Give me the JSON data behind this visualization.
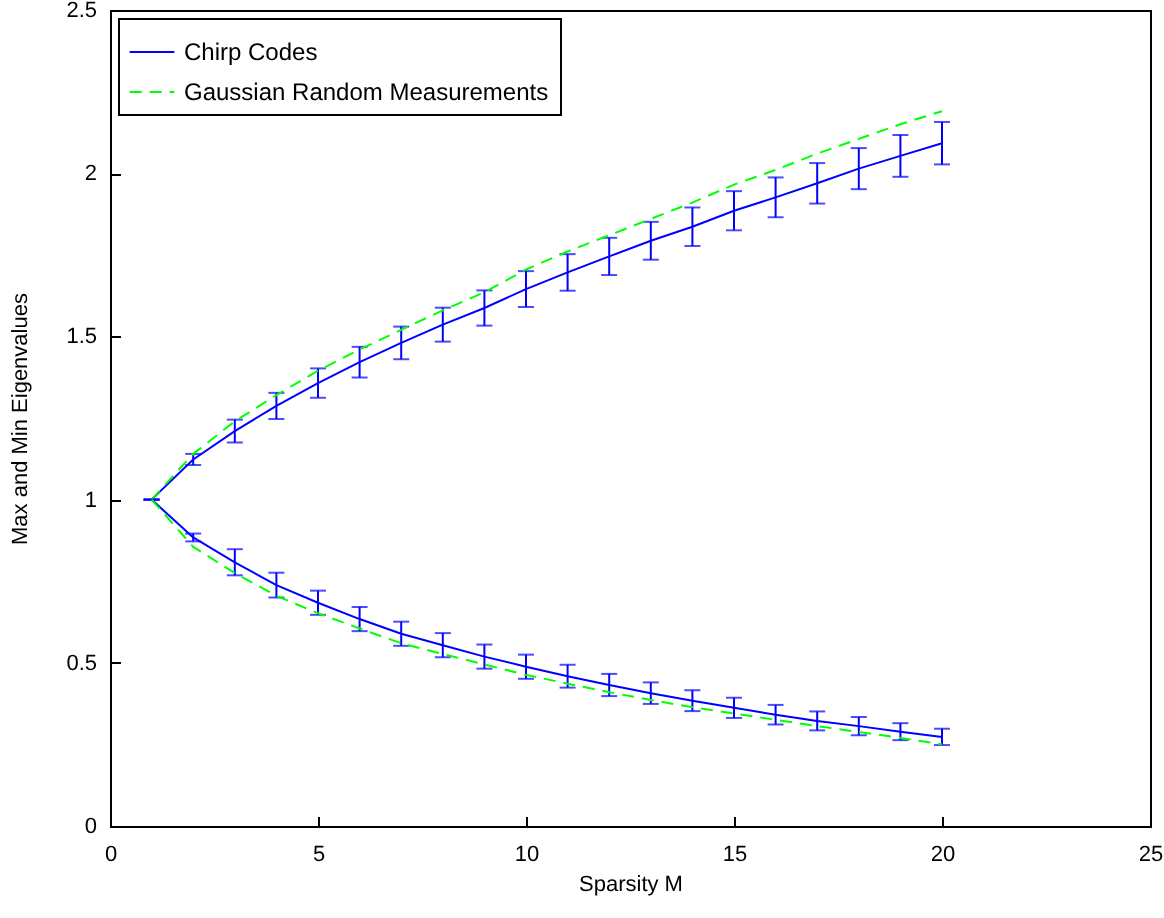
{
  "chart_data": {
    "type": "line",
    "xlabel": "Sparsity M",
    "ylabel": "Max and Min Eigenvalues",
    "x": [
      1,
      2,
      3,
      4,
      5,
      6,
      7,
      8,
      9,
      10,
      11,
      12,
      13,
      14,
      15,
      16,
      17,
      18,
      19,
      20
    ],
    "series": [
      {
        "name": "Chirp Codes",
        "color": "#0000ff",
        "line_style": "solid",
        "values": [
          1,
          1.123,
          1.21,
          1.287,
          1.357,
          1.421,
          1.48,
          1.536,
          1.587,
          1.645,
          1.696,
          1.745,
          1.793,
          1.836,
          1.885,
          1.926,
          1.969,
          2.014,
          2.053,
          2.092
        ],
        "errors": [
          0,
          0.017,
          0.035,
          0.04,
          0.045,
          0.047,
          0.05,
          0.052,
          0.054,
          0.055,
          0.056,
          0.057,
          0.058,
          0.059,
          0.06,
          0.061,
          0.062,
          0.063,
          0.064,
          0.065
        ]
      },
      {
        "name": "Gaussian Random Measurements",
        "color": "#00ff00",
        "line_style": "dashed",
        "values": [
          1,
          1.14,
          1.24,
          1.32,
          1.395,
          1.46,
          1.52,
          1.58,
          1.635,
          1.705,
          1.76,
          1.81,
          1.86,
          1.91,
          1.965,
          2.01,
          2.06,
          2.105,
          2.15,
          2.19
        ]
      },
      {
        "color": "#0000ff",
        "line_style": "solid",
        "values": [
          1,
          0.884,
          0.808,
          0.738,
          0.684,
          0.634,
          0.589,
          0.554,
          0.519,
          0.488,
          0.459,
          0.432,
          0.407,
          0.384,
          0.362,
          0.341,
          0.322,
          0.306,
          0.289,
          0.273
        ],
        "errors": [
          0,
          0.012,
          0.04,
          0.038,
          0.037,
          0.037,
          0.037,
          0.037,
          0.037,
          0.037,
          0.035,
          0.034,
          0.033,
          0.032,
          0.031,
          0.03,
          0.029,
          0.028,
          0.026,
          0.025
        ]
      },
      {
        "color": "#00ff00",
        "line_style": "dashed",
        "values": [
          1,
          0.855,
          0.775,
          0.705,
          0.652,
          0.605,
          0.56,
          0.527,
          0.495,
          0.463,
          0.436,
          0.41,
          0.386,
          0.364,
          0.345,
          0.325,
          0.306,
          0.288,
          0.27,
          0.25
        ]
      }
    ],
    "xlim": [
      0,
      25
    ],
    "xticks": [
      0,
      5,
      10,
      15,
      20,
      25
    ],
    "ylim": [
      0,
      2.5
    ],
    "yticks": [
      0,
      0.5,
      1,
      1.5,
      2,
      2.5
    ],
    "grid": false,
    "legend": "top left",
    "marker": "none"
  }
}
